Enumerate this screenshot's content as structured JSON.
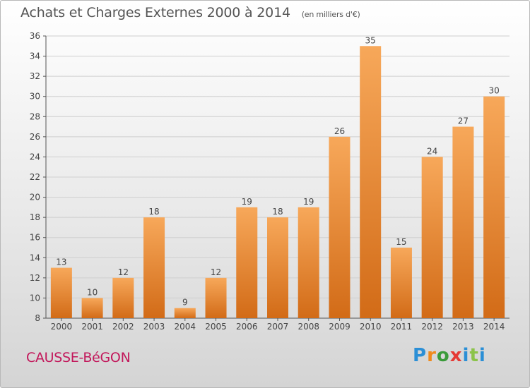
{
  "title": "Achats et Charges Externes 2000 à 2014",
  "unit": "(en milliers d'€)",
  "commune": "CAUSSE-BéGON",
  "brand": {
    "letters": [
      "P",
      "r",
      "o",
      "x",
      "i",
      "t",
      "i"
    ],
    "colors": [
      "#2b8fd6",
      "#f08a1c",
      "#3a9b3a",
      "#e53935",
      "#2b8fd6",
      "#8bc34a",
      "#2b8fd6"
    ]
  },
  "colors": {
    "bar_light": "#f7a85a",
    "bar_dark": "#d26b17",
    "commune": "#c2185b",
    "grid": "#cfcfcf",
    "axis": "#555555"
  },
  "chart_data": {
    "type": "bar",
    "categories": [
      "2000",
      "2001",
      "2002",
      "2003",
      "2004",
      "2005",
      "2006",
      "2007",
      "2008",
      "2009",
      "2010",
      "2011",
      "2012",
      "2013",
      "2014"
    ],
    "values": [
      13,
      10,
      12,
      18,
      9,
      12,
      19,
      18,
      19,
      26,
      35,
      15,
      24,
      27,
      30
    ],
    "title": "Achats et Charges Externes 2000 à 2014",
    "xlabel": "",
    "ylabel": "",
    "ylim": [
      8,
      36
    ],
    "yticks": [
      8,
      10,
      12,
      14,
      16,
      18,
      20,
      22,
      24,
      26,
      28,
      30,
      32,
      34,
      36
    ],
    "grid": true,
    "data_labels": true
  }
}
